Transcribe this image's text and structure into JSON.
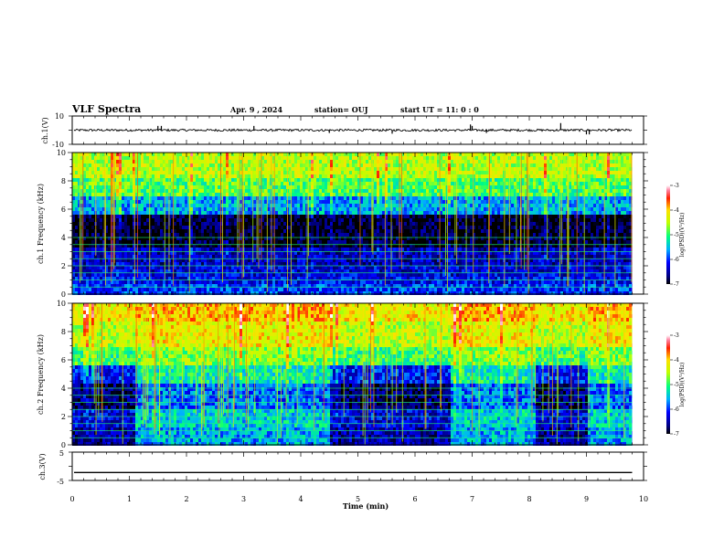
{
  "header": {
    "title": "VLF Spectra",
    "date": "Apr. 9 , 2024",
    "station": "station= OUJ",
    "start": "start UT = 11: 0 : 0"
  },
  "chart_data": [
    {
      "type": "line",
      "name": "waveform-ch1",
      "ylabel": "ch.1(V)",
      "ylim": [
        -10,
        10
      ],
      "y_ticks": [
        "10",
        "-10"
      ],
      "baseline": 0,
      "spikes": [
        {
          "t": 1.5,
          "v": 3
        },
        {
          "t": 1.56,
          "v": 3
        },
        {
          "t": 3.18,
          "v": 3
        },
        {
          "t": 4.5,
          "v": -2
        },
        {
          "t": 5.6,
          "v": -2.5
        },
        {
          "t": 6.97,
          "v": 4
        },
        {
          "t": 7.0,
          "v": 3
        },
        {
          "t": 7.25,
          "v": -2
        },
        {
          "t": 8.55,
          "v": 5
        },
        {
          "t": 9.0,
          "v": -3
        },
        {
          "t": 9.05,
          "v": -3
        }
      ]
    },
    {
      "type": "heatmap",
      "name": "spectrogram-ch1",
      "ylabel": "ch.1 Frequency (kHz)",
      "ylim": [
        0,
        10
      ],
      "y_ticks": [
        "0",
        "2",
        "4",
        "6",
        "8",
        "10"
      ],
      "bands_khz": [
        {
          "from": 0,
          "to": 0.6,
          "level": -6.0
        },
        {
          "from": 0.6,
          "to": 1.2,
          "level": -6.2
        },
        {
          "from": 1.2,
          "to": 2.0,
          "level": -6.3
        },
        {
          "from": 2.0,
          "to": 3.4,
          "level": -6.4
        },
        {
          "from": 3.4,
          "to": 5.6,
          "level": -6.9
        },
        {
          "from": 5.6,
          "to": 6.8,
          "level": -5.6
        },
        {
          "from": 6.8,
          "to": 8.2,
          "level": -4.9
        },
        {
          "from": 8.2,
          "to": 10,
          "level": -4.5
        }
      ],
      "colorbar": {
        "label": "log(PSD)(V²/Hz)",
        "range": [
          -7,
          -3
        ],
        "ticks": [
          "-3",
          "-4",
          "-5",
          "-6",
          "-7"
        ]
      }
    },
    {
      "type": "heatmap",
      "name": "spectrogram-ch2",
      "ylabel": "ch.2 Frequency (kHz)",
      "ylim": [
        0,
        10
      ],
      "y_ticks": [
        "0",
        "2",
        "4",
        "6",
        "8",
        "10"
      ],
      "quiet_segments_min": [
        [
          0,
          1.1
        ],
        [
          4.5,
          6.6
        ],
        [
          8.1,
          9.0
        ]
      ],
      "bands_khz": [
        {
          "from": 0,
          "to": 1.2,
          "level": -5.6
        },
        {
          "from": 1.2,
          "to": 2.6,
          "level": -5.4
        },
        {
          "from": 2.6,
          "to": 4.2,
          "level": -5.8
        },
        {
          "from": 4.2,
          "to": 5.6,
          "level": -5.2
        },
        {
          "from": 5.6,
          "to": 7.0,
          "level": -4.7
        },
        {
          "from": 7.0,
          "to": 8.6,
          "level": -4.2
        },
        {
          "from": 8.6,
          "to": 10,
          "level": -3.9
        }
      ],
      "colorbar": {
        "label": "log(PSD)(V²/Hz)",
        "range": [
          -7,
          -3
        ],
        "ticks": [
          "-3",
          "-4",
          "-5",
          "-6",
          "-7"
        ]
      }
    },
    {
      "type": "line",
      "name": "waveform-ch3",
      "ylabel": "ch.3(V)",
      "ylim": [
        -5,
        5
      ],
      "y_ticks": [
        "5",
        "-5"
      ],
      "baseline": -2.2
    }
  ],
  "x_axis": {
    "label": "Time (min)",
    "range": [
      0,
      10
    ],
    "ticks": [
      "0",
      "1",
      "2",
      "3",
      "4",
      "5",
      "6",
      "7",
      "8",
      "9",
      "10"
    ],
    "data_end": 9.8
  }
}
